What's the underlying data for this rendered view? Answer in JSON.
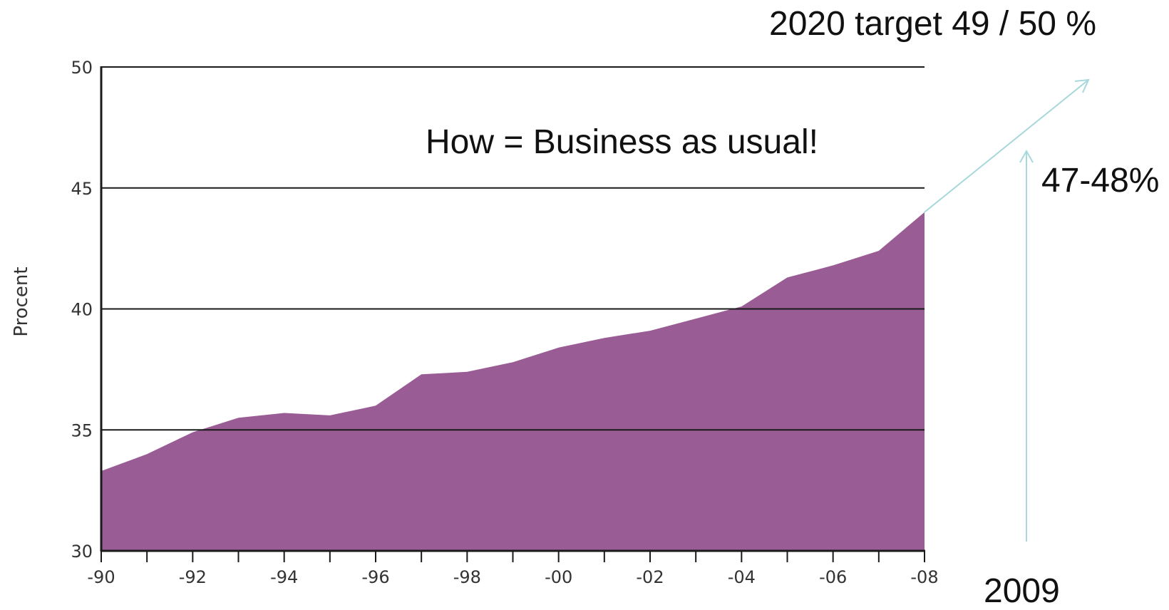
{
  "chart_data": {
    "type": "area",
    "title": "",
    "xlabel": "",
    "ylabel": "Procent",
    "ylim": [
      30,
      50
    ],
    "yticks": [
      "30",
      "35",
      "40",
      "45",
      "50"
    ],
    "xticks": [
      "-90",
      "-92",
      "-94",
      "-96",
      "-98",
      "-00",
      "-02",
      "-04",
      "-06",
      "-08"
    ],
    "grid": "horizontal",
    "area_color": "#995c94",
    "arrow_color": "#a8d8dc",
    "x": [
      1990,
      1991,
      1992,
      1993,
      1994,
      1995,
      1996,
      1997,
      1998,
      1999,
      2000,
      2001,
      2002,
      2003,
      2004,
      2005,
      2006,
      2007,
      2008
    ],
    "values": [
      33.3,
      34.0,
      34.9,
      35.5,
      35.7,
      35.6,
      36.0,
      37.3,
      37.4,
      37.8,
      38.4,
      38.8,
      39.1,
      39.6,
      40.1,
      41.3,
      41.8,
      42.4,
      44.0
    ],
    "annotations": {
      "target": "2020 target 49 / 50 %",
      "how": "How = Business as usual!",
      "range": "47-48%",
      "year": "2009"
    }
  }
}
